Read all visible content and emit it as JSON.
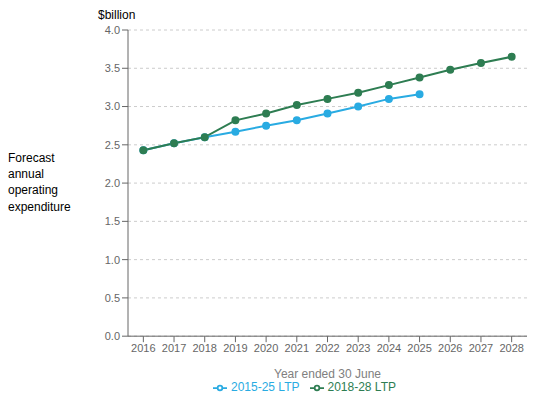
{
  "chart_data": {
    "type": "line",
    "x_label": "Year ended 30 June",
    "y_label": "$billion",
    "annotations": [
      "Forecast\nannual\noperating\nexpenditure"
    ],
    "x": [
      2016,
      2017,
      2018,
      2019,
      2020,
      2021,
      2022,
      2023,
      2024,
      2025,
      2026,
      2027,
      2028
    ],
    "series": [
      {
        "name": "2015-25 LTP",
        "color": "#29abe2",
        "marker": "circle",
        "values": [
          2.43,
          2.52,
          2.6,
          2.67,
          2.75,
          2.82,
          2.91,
          3.0,
          3.1,
          3.16,
          null,
          null,
          null
        ]
      },
      {
        "name": "2018-28 LTP",
        "color": "#2e7d52",
        "marker": "circle",
        "values": [
          2.43,
          2.52,
          2.6,
          2.82,
          2.91,
          3.02,
          3.1,
          3.18,
          3.28,
          3.38,
          3.48,
          3.57,
          3.65
        ]
      }
    ],
    "xlim": [
      2015.5,
      2028.5
    ],
    "xticks": [
      2016,
      2017,
      2018,
      2019,
      2020,
      2021,
      2022,
      2023,
      2024,
      2025,
      2026,
      2027,
      2028
    ],
    "ylim": [
      0.0,
      4.0
    ],
    "yticks": [
      {
        "value": 0,
        "label": "0.0"
      },
      {
        "value": 0.5,
        "label": "0.5"
      },
      {
        "value": 1,
        "label": "1.0"
      },
      {
        "value": 1.5,
        "label": "1.5"
      },
      {
        "value": 2,
        "label": "2.0"
      },
      {
        "value": 2.5,
        "label": "2.5"
      },
      {
        "value": 3,
        "label": "3.0"
      },
      {
        "value": 3.5,
        "label": "3.5"
      },
      {
        "value": 4,
        "label": "4.0"
      }
    ],
    "grid": "y",
    "legend": "bottom"
  }
}
